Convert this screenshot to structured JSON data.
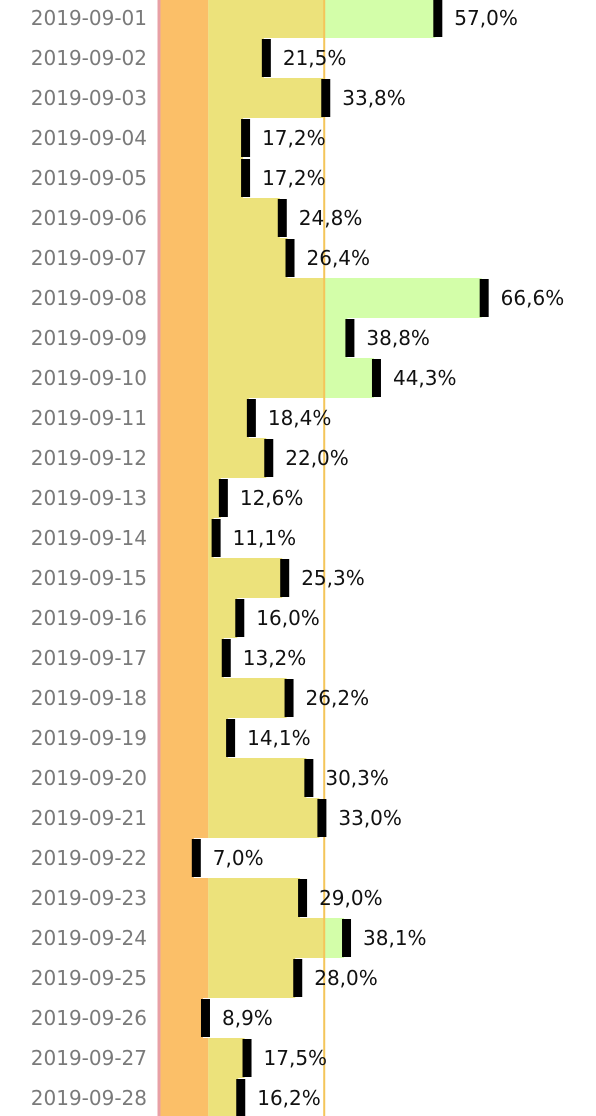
{
  "chart_data": {
    "type": "bar",
    "categories": [
      "2019-09-01",
      "2019-09-02",
      "2019-09-03",
      "2019-09-04",
      "2019-09-05",
      "2019-09-06",
      "2019-09-07",
      "2019-09-08",
      "2019-09-09",
      "2019-09-10",
      "2019-09-11",
      "2019-09-12",
      "2019-09-13",
      "2019-09-14",
      "2019-09-15",
      "2019-09-16",
      "2019-09-17",
      "2019-09-18",
      "2019-09-19",
      "2019-09-20",
      "2019-09-21",
      "2019-09-22",
      "2019-09-23",
      "2019-09-24",
      "2019-09-25",
      "2019-09-26",
      "2019-09-27",
      "2019-09-28"
    ],
    "values": [
      57.0,
      21.5,
      33.8,
      17.2,
      17.2,
      24.8,
      26.4,
      66.6,
      38.8,
      44.3,
      18.4,
      22.0,
      12.6,
      11.1,
      25.3,
      16.0,
      13.2,
      26.2,
      14.1,
      30.3,
      33.0,
      7.0,
      29.0,
      38.1,
      28.0,
      8.9,
      17.5,
      16.2
    ],
    "value_labels": [
      "57,0%",
      "21,5%",
      "33,8%",
      "17,2%",
      "17,2%",
      "24,8%",
      "26,4%",
      "66,6%",
      "38,8%",
      "44,3%",
      "18,4%",
      "22,0%",
      "12,6%",
      "11,1%",
      "25,3%",
      "16,0%",
      "13,2%",
      "26,2%",
      "14,1%",
      "30,3%",
      "33,0%",
      "7,0%",
      "29,0%",
      "38,1%",
      "28,0%",
      "8,9%",
      "17,5%",
      "16,2%"
    ],
    "title": "",
    "xlabel": "",
    "ylabel": "",
    "xlim": [
      0,
      100
    ],
    "orientation": "horizontal",
    "reference_line": 34,
    "bands": [
      {
        "from": 0,
        "to": 10,
        "color": "#fbbf68"
      },
      {
        "from": 10,
        "to": 34,
        "color": "#ece27b"
      },
      {
        "from": 34,
        "to": 100,
        "color": "#d3fea9"
      }
    ],
    "colors": {
      "marker": "#000000",
      "reference_line": "#f4c55a",
      "axis_line": "#e8a0a6",
      "category_text": "#7a7a7a",
      "value_text": "#111111"
    }
  }
}
